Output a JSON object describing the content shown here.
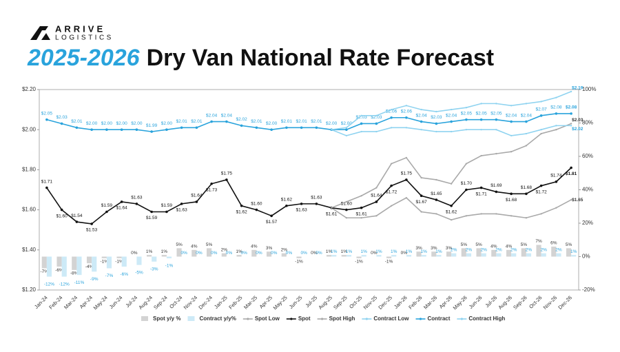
{
  "logo": {
    "line1": "ARRIVE",
    "line2": "LOGISTICS"
  },
  "chart_data": {
    "type": "combo",
    "title_highlight": "2025-2026",
    "title": "Dry Van National Rate Forecast",
    "categories": [
      "Jan-24",
      "Feb-24",
      "Mar-24",
      "Apr-24",
      "May-24",
      "Jun-24",
      "Jul-24",
      "Aug-24",
      "Sep-24",
      "Oct-24",
      "Nov-24",
      "Dec-24",
      "Jan-25",
      "Feb-25",
      "Mar-25",
      "Apr-25",
      "May-25",
      "Jun-25",
      "Jul-25",
      "Aug-25",
      "Sep-25",
      "Oct-25",
      "Nov-25",
      "Dec-25",
      "Jan-26",
      "Feb-26",
      "Mar-26",
      "Apr-26",
      "May-26",
      "Jun-26",
      "Jul-26",
      "Aug-26",
      "Sep-26",
      "Oct-26",
      "Nov-26",
      "Dec-26"
    ],
    "ylim": [
      1.2,
      2.2
    ],
    "yticks": [
      {
        "value": 1.2,
        "label": "$1.20"
      },
      {
        "value": 1.4,
        "label": "$1.40"
      },
      {
        "value": 1.6,
        "label": "$1.60"
      },
      {
        "value": 1.8,
        "label": "$1.80"
      },
      {
        "value": 2.0,
        "label": "$2.00"
      },
      {
        "value": 2.2,
        "label": "$2.20"
      }
    ],
    "y2lim": [
      -20,
      100
    ],
    "y2ticks": [
      {
        "value": -20,
        "label": "-20%"
      },
      {
        "value": 0,
        "label": "0%"
      },
      {
        "value": 20,
        "label": "20%"
      },
      {
        "value": 40,
        "label": "40%"
      },
      {
        "value": 60,
        "label": "60%"
      },
      {
        "value": 80,
        "label": "80%"
      },
      {
        "value": 100,
        "label": "100%"
      }
    ],
    "grid": false,
    "series": [
      {
        "name": "Spot y/y %",
        "type": "bar",
        "axis": "y2",
        "color": "#d3d3d3",
        "values": [
          -7,
          -6,
          -8,
          -4,
          -1,
          -1,
          0,
          1,
          1,
          5,
          4,
          5,
          2,
          1,
          4,
          3,
          2,
          -1,
          0,
          1,
          1,
          -1,
          0,
          -1,
          0,
          3,
          3,
          3,
          5,
          5,
          4,
          4,
          5,
          7,
          6,
          5
        ],
        "value_labels": [
          "-7%",
          "-6%",
          "-8%",
          "-4%",
          "-1%",
          "-1%",
          "0%",
          "1%",
          "1%",
          "5%",
          "4%",
          "5%",
          "2%",
          "1%",
          "4%",
          "3%",
          "2%",
          "-1%",
          "0%",
          "1%",
          "1%",
          "-1%",
          "0%",
          "-1%",
          "0%",
          "3%",
          "3%",
          "3%",
          "5%",
          "5%",
          "4%",
          "4%",
          "5%",
          "7%",
          "6%",
          "5%"
        ]
      },
      {
        "name": "Contract y/y%",
        "type": "bar",
        "axis": "y2",
        "color": "#cdeaf7",
        "values": [
          -12,
          -12,
          -11,
          -9,
          -7,
          -6,
          -5,
          -3,
          -1,
          0,
          0,
          0,
          0,
          0,
          0,
          0,
          0,
          0,
          0,
          1,
          1,
          1,
          1,
          1,
          1,
          1,
          1,
          2,
          2,
          2,
          2,
          2,
          2,
          2,
          2,
          1
        ],
        "value_labels": [
          "-12%",
          "-12%",
          "-11%",
          "-9%",
          "-7%",
          "-6%",
          "-5%",
          "-3%",
          "-1%",
          "0%",
          "0%",
          "0%",
          "0%",
          "0%",
          "0%",
          "0%",
          "0%",
          "0%",
          "0%",
          "1%",
          "1%",
          "1%",
          "1%",
          "1%",
          "1%",
          "1%",
          "1%",
          "2%",
          "2%",
          "2%",
          "2%",
          "2%",
          "2%",
          "2%",
          "2%",
          "1%"
        ]
      },
      {
        "name": "Spot Low",
        "type": "line",
        "color": "#a9a9a9",
        "values": [
          null,
          null,
          null,
          null,
          null,
          null,
          null,
          null,
          null,
          null,
          null,
          null,
          null,
          null,
          null,
          null,
          null,
          null,
          null,
          1.61,
          1.56,
          1.56,
          1.57,
          1.62,
          1.66,
          1.59,
          1.58,
          1.55,
          1.57,
          1.58,
          1.58,
          1.57,
          1.56,
          1.58,
          1.61,
          1.65
        ],
        "value_labels": [
          null,
          null,
          null,
          null,
          null,
          null,
          null,
          null,
          null,
          null,
          null,
          null,
          null,
          null,
          null,
          null,
          null,
          null,
          null,
          null,
          null,
          null,
          null,
          null,
          null,
          null,
          null,
          null,
          null,
          null,
          null,
          null,
          null,
          null,
          null,
          "$1.65"
        ]
      },
      {
        "name": "Spot",
        "type": "line",
        "color": "#111111",
        "values": [
          1.71,
          1.6,
          1.54,
          1.53,
          1.59,
          1.64,
          1.63,
          1.59,
          1.59,
          1.63,
          1.64,
          1.73,
          1.75,
          1.62,
          1.6,
          1.57,
          1.62,
          1.63,
          1.63,
          1.61,
          1.6,
          1.61,
          1.64,
          1.72,
          1.75,
          1.67,
          1.65,
          1.62,
          1.7,
          1.71,
          1.69,
          1.68,
          1.68,
          1.72,
          1.74,
          1.81
        ],
        "value_labels": [
          "$1.71",
          "$1.60",
          "$1.54",
          "$1.53",
          "$1.59",
          "$1.64",
          "$1.63",
          "$1.59",
          "$1.59",
          "$1.63",
          "$1.64",
          "$1.73",
          "$1.75",
          "$1.62",
          "$1.60",
          "$1.57",
          "$1.62",
          "$1.63",
          "$1.63",
          "$1.61",
          "$1.60",
          "$1.61",
          "$1.64",
          "$1.72",
          "$1.75",
          "$1.67",
          "$1.65",
          "$1.62",
          "$1.70",
          "$1.71",
          "$1.69",
          "$1.68",
          "$1.68",
          "$1.72",
          "$1.74",
          "$1.81"
        ]
      },
      {
        "name": "Spot High",
        "type": "line",
        "color": "#a9a9a9",
        "values": [
          null,
          null,
          null,
          null,
          null,
          null,
          null,
          null,
          null,
          null,
          null,
          null,
          null,
          null,
          null,
          null,
          null,
          null,
          null,
          1.61,
          1.64,
          1.67,
          1.71,
          1.83,
          1.86,
          1.76,
          1.75,
          1.73,
          1.83,
          1.87,
          1.88,
          1.89,
          1.92,
          1.98,
          2.0,
          2.03
        ],
        "value_labels": [
          null,
          null,
          null,
          null,
          null,
          null,
          null,
          null,
          null,
          null,
          null,
          null,
          null,
          null,
          null,
          null,
          null,
          null,
          null,
          null,
          null,
          null,
          null,
          null,
          null,
          null,
          null,
          null,
          null,
          null,
          null,
          null,
          null,
          null,
          null,
          "$2.03"
        ]
      },
      {
        "name": "Contract Low",
        "type": "line",
        "color": "#8fd3f0",
        "values": [
          null,
          null,
          null,
          null,
          null,
          null,
          null,
          null,
          null,
          null,
          null,
          null,
          null,
          null,
          null,
          null,
          null,
          null,
          null,
          2.0,
          1.97,
          1.99,
          1.99,
          2.01,
          2.01,
          2.0,
          1.99,
          1.99,
          2.0,
          2.0,
          2.0,
          1.97,
          1.98,
          2.0,
          2.02,
          2.02
        ],
        "value_labels": [
          null,
          null,
          null,
          null,
          null,
          null,
          null,
          null,
          null,
          null,
          null,
          null,
          null,
          null,
          null,
          null,
          null,
          null,
          null,
          null,
          null,
          null,
          null,
          null,
          null,
          null,
          null,
          null,
          null,
          null,
          null,
          null,
          null,
          null,
          null,
          "$2.02"
        ]
      },
      {
        "name": "Contract",
        "type": "line",
        "color": "#29a3dc",
        "values": [
          2.05,
          2.03,
          2.01,
          2.0,
          2.0,
          2.0,
          2.0,
          1.99,
          2.0,
          2.01,
          2.01,
          2.04,
          2.04,
          2.02,
          2.01,
          2.0,
          2.01,
          2.01,
          2.01,
          2.0,
          2.0,
          2.03,
          2.03,
          2.06,
          2.06,
          2.04,
          2.03,
          2.04,
          2.05,
          2.05,
          2.05,
          2.04,
          2.04,
          2.07,
          2.08,
          2.08
        ],
        "value_labels": [
          "$2.05",
          "$2.03",
          "$2.01",
          "$2.00",
          "$2.00",
          "$2.00",
          "$2.00",
          "$1.99",
          "$2.00",
          "$2.01",
          "$2.01",
          "$2.04",
          "$2.04",
          "$2.02",
          "$2.01",
          "$2.00",
          "$2.01",
          "$2.01",
          "$2.01",
          "$2.00",
          "$2.00",
          "$2.03",
          "$2.03",
          "$2.06",
          "$2.06",
          "$2.04",
          "$2.03",
          "$2.04",
          "$2.05",
          "$2.05",
          "$2.05",
          "$2.04",
          "$2.04",
          "$2.07",
          "$2.08",
          "$2.08"
        ]
      },
      {
        "name": "Contract High",
        "type": "line",
        "color": "#8fd3f0",
        "values": [
          null,
          null,
          null,
          null,
          null,
          null,
          null,
          null,
          null,
          null,
          null,
          null,
          null,
          null,
          null,
          null,
          null,
          null,
          null,
          2.0,
          2.01,
          2.07,
          2.07,
          2.1,
          2.12,
          2.1,
          2.09,
          2.1,
          2.11,
          2.13,
          2.13,
          2.12,
          2.13,
          2.14,
          2.16,
          2.19
        ],
        "value_labels": [
          null,
          null,
          null,
          null,
          null,
          null,
          null,
          null,
          null,
          null,
          null,
          null,
          null,
          null,
          null,
          null,
          null,
          null,
          null,
          null,
          null,
          null,
          null,
          null,
          null,
          null,
          null,
          null,
          null,
          null,
          null,
          null,
          null,
          null,
          null,
          "$2.19"
        ]
      }
    ]
  }
}
